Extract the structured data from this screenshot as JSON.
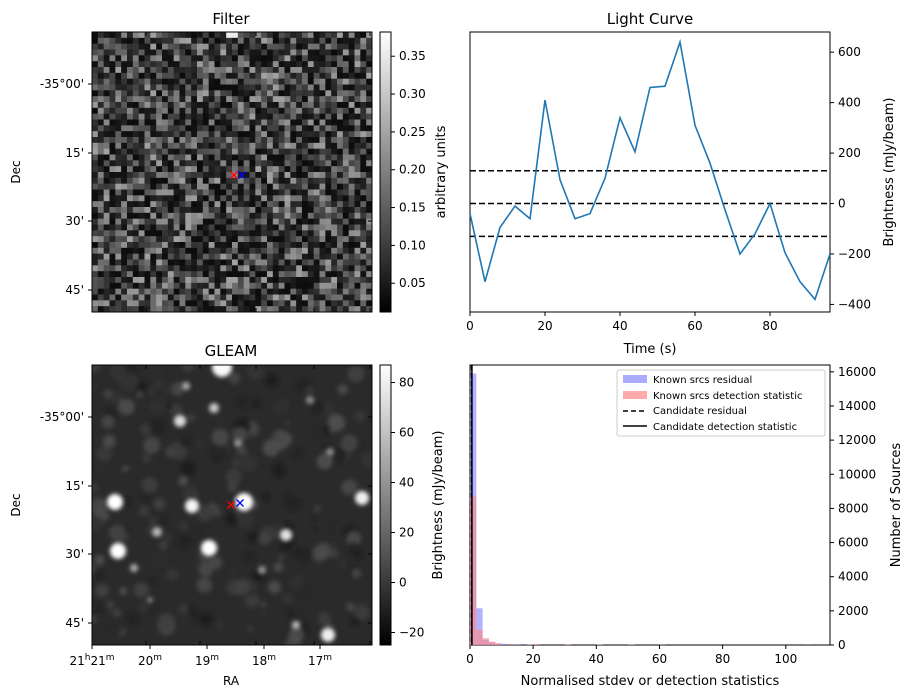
{
  "colors": {
    "line": "#1f77b4",
    "known_residual": "#8888ff",
    "known_detection": "#ff8888",
    "candidate_red": "#ff0000",
    "candidate_blue": "#0000ff"
  },
  "chart_data": [
    {
      "type": "heatmap",
      "title": "Filter",
      "xlabel": "",
      "ylabel": "Dec",
      "dec_tick_labels": [
        "-35°00'",
        "15'",
        "30'",
        "45'"
      ],
      "colorbar": {
        "label": "arbitrary units",
        "range": [
          0.012,
          0.382
        ],
        "ticks": [
          0.05,
          0.1,
          0.15,
          0.2,
          0.25,
          0.3,
          0.35
        ],
        "tick_labels": [
          "0.05",
          "0.10",
          "0.15",
          "0.20",
          "0.25",
          "0.30",
          "0.35"
        ]
      },
      "markers": [
        {
          "symbol": "x",
          "color": "red"
        },
        {
          "symbol": "x",
          "color": "blue"
        }
      ]
    },
    {
      "type": "line",
      "title": "Light Curve",
      "xlabel": "Time (s)",
      "ylabel": "Brightness (mJy/beam)",
      "xlim": [
        0,
        96
      ],
      "ylim": [
        -430,
        680
      ],
      "x_ticks": [
        0,
        20,
        40,
        60,
        80
      ],
      "y_ticks": [
        -400,
        -200,
        0,
        200,
        400,
        600
      ],
      "x": [
        0,
        4,
        8,
        12,
        16,
        20,
        24,
        28,
        32,
        36,
        40,
        44,
        48,
        52,
        56,
        60,
        64,
        68,
        72,
        76,
        80,
        84,
        88,
        92,
        96
      ],
      "y": [
        -40,
        -310,
        -95,
        -10,
        -60,
        410,
        95,
        -60,
        -40,
        100,
        340,
        205,
        460,
        465,
        640,
        310,
        160,
        -25,
        -200,
        -120,
        0,
        -195,
        -310,
        -380,
        -200
      ],
      "hlines": [
        130,
        0,
        -130
      ]
    },
    {
      "type": "heatmap",
      "title": "GLEAM",
      "xlabel": "RA",
      "ylabel": "Dec",
      "dec_tick_labels": [
        "-35°00'",
        "15'",
        "30'",
        "45'"
      ],
      "ra_tick_labels": [
        "21h21m",
        "20m",
        "19m",
        "18m",
        "17m"
      ],
      "colorbar": {
        "label": "Brightness (mJy/beam)",
        "range": [
          -25,
          87
        ],
        "ticks": [
          -20,
          0,
          20,
          40,
          60,
          80
        ],
        "tick_labels": [
          "−20",
          "0",
          "20",
          "40",
          "60",
          "80"
        ]
      },
      "markers": [
        {
          "symbol": "x",
          "color": "red"
        },
        {
          "symbol": "x",
          "color": "blue"
        }
      ]
    },
    {
      "type": "bar",
      "title": "",
      "xlabel": "Normalised stdev or detection statistics",
      "ylabel": "Number of Sources",
      "xlim": [
        0,
        114
      ],
      "ylim": [
        0,
        16400
      ],
      "x_ticks": [
        0,
        20,
        40,
        60,
        80,
        100
      ],
      "y_ticks": [
        0,
        2000,
        4000,
        6000,
        8000,
        10000,
        12000,
        14000,
        16000
      ],
      "bin_width": 2,
      "series": [
        {
          "name": "Known srcs residual",
          "bins_start": [
            0,
            2,
            4,
            6,
            8,
            10,
            14,
            18,
            40,
            50,
            60,
            106
          ],
          "values": [
            15900,
            2150,
            300,
            150,
            90,
            60,
            40,
            30,
            20,
            15,
            10,
            10
          ]
        },
        {
          "name": "Known srcs detection statistic",
          "bins_start": [
            0,
            2,
            4,
            6,
            8,
            12,
            20,
            30,
            40,
            50,
            60
          ],
          "values": [
            8700,
            900,
            400,
            200,
            100,
            60,
            40,
            30,
            20,
            15,
            10
          ]
        }
      ],
      "candidate_residual_x": 0.5,
      "candidate_detection_x": 0.6,
      "legend": {
        "position": "top-right",
        "entries": [
          "Known srcs residual",
          "Known srcs detection statistic",
          "Candidate residual",
          "Candidate detection statistic"
        ]
      }
    }
  ]
}
